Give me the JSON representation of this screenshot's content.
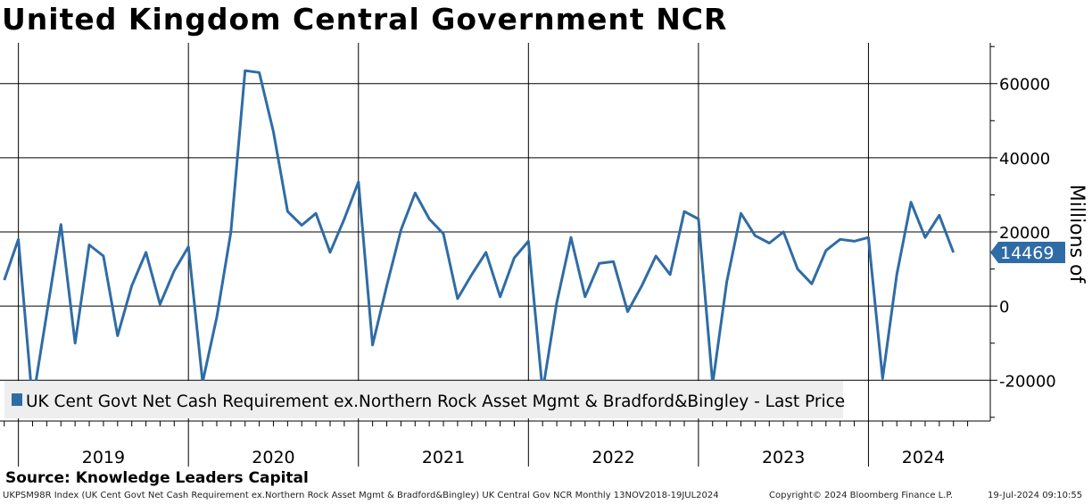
{
  "header": {
    "title": "United Kingdom Central Government NCR"
  },
  "source": "Source: Knowledge Leaders Capital",
  "footer": {
    "left": "UKPSM98R Index (UK Cent Govt Net Cash Requirement ex.Northern Rock Asset Mgmt & Bradford&Bingley) UK Central Gov NCR  Monthly 13NOV2018-19JUL2024",
    "middle": "Copyright© 2024 Bloomberg Finance L.P.",
    "right": "19-Jul-2024 09:10:55"
  },
  "colors": {
    "series": "#2f6ca5",
    "last_price_bg": "#2f6ca5",
    "legend_bg": "#eeeeee",
    "grid": "#000000"
  },
  "chart_data": {
    "type": "line",
    "title": "United Kingdom Central Government NCR",
    "ylabel": "Millions of",
    "xlabel": "",
    "ylim": [
      -31000,
      71000
    ],
    "y_ticks": [
      -20000,
      0,
      20000,
      40000,
      60000
    ],
    "y_tick_labels": [
      "-20000",
      "0",
      "20000",
      "40000",
      "60000"
    ],
    "x_years": [
      "2019",
      "2020",
      "2021",
      "2022",
      "2023",
      "2024"
    ],
    "x_range_months": [
      -0.3,
      69.6
    ],
    "year_start_month_index": [
      1,
      13,
      25,
      37,
      49,
      61
    ],
    "legend": "UK Cent Govt Net Cash Requirement ex.Northern Rock Asset Mgmt & Bradford&Bingley - Last Price",
    "legend_position": "bottom-left",
    "grid": true,
    "last_price": 14469,
    "series": [
      {
        "name": "UK Cent Govt Net Cash Requirement ex.Northern Rock Asset Mgmt & Bradford&Bingley - Last Price",
        "start": "Nov 2018",
        "frequency": "monthly",
        "values": [
          7000,
          18000,
          -26000,
          -2000,
          22000,
          -10000,
          16500,
          13500,
          -8000,
          5500,
          14500,
          500,
          9500,
          16000,
          -20500,
          -3000,
          20000,
          63500,
          63000,
          47000,
          25500,
          21800,
          25000,
          14500,
          23500,
          33500,
          -10500,
          5500,
          20500,
          30500,
          23500,
          19500,
          2000,
          8500,
          14500,
          2500,
          13000,
          17500,
          -23000,
          1000,
          18500,
          2500,
          11500,
          12000,
          -1500,
          5500,
          13500,
          8500,
          25500,
          23500,
          -21000,
          6500,
          25000,
          19000,
          17000,
          20000,
          10000,
          6000,
          15000,
          18000,
          17500,
          18500,
          -19500,
          8500,
          28000,
          18500,
          24500,
          14469
        ]
      }
    ]
  }
}
